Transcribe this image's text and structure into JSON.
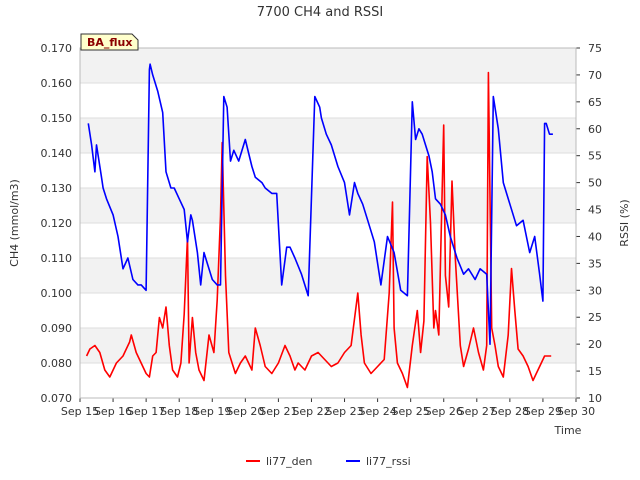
{
  "chart_data": {
    "type": "line",
    "title": "7700 CH4 and RSSI",
    "badge": "BA_flux",
    "xlabel": "Time",
    "ylabel_left": "CH4 (mmol/m3)",
    "ylabel_right": "RSSI (%)",
    "x_ticks": [
      "Sep 15",
      "Sep 16",
      "Sep 17",
      "Sep 18",
      "Sep 19",
      "Sep 20",
      "Sep 21",
      "Sep 22",
      "Sep 23",
      "Sep 24",
      "Sep 25",
      "Sep 26",
      "Sep 27",
      "Sep 28",
      "Sep 29",
      "Sep 30"
    ],
    "xlim": [
      15,
      30
    ],
    "ylim_left": [
      0.07,
      0.17
    ],
    "y_ticks_left": [
      "0.070",
      "0.080",
      "0.090",
      "0.100",
      "0.110",
      "0.120",
      "0.130",
      "0.140",
      "0.150",
      "0.160",
      "0.170"
    ],
    "ylim_right": [
      10,
      75
    ],
    "y_ticks_right": [
      "10",
      "15",
      "20",
      "25",
      "30",
      "35",
      "40",
      "45",
      "50",
      "55",
      "60",
      "65",
      "70",
      "75"
    ],
    "grid": true,
    "legend_position": "bottom-center",
    "series": [
      {
        "name": "li77_den",
        "axis": "left",
        "color": "#ff0000",
        "x": [
          15.2,
          15.3,
          15.45,
          15.6,
          15.75,
          15.9,
          16.1,
          16.3,
          16.5,
          16.55,
          16.7,
          16.9,
          17.0,
          17.1,
          17.2,
          17.3,
          17.4,
          17.5,
          17.6,
          17.7,
          17.8,
          17.95,
          18.05,
          18.15,
          18.25,
          18.3,
          18.4,
          18.5,
          18.6,
          18.75,
          18.9,
          19.05,
          19.15,
          19.25,
          19.3,
          19.4,
          19.5,
          19.6,
          19.7,
          19.85,
          20.0,
          20.2,
          20.3,
          20.45,
          20.6,
          20.8,
          21.0,
          21.2,
          21.35,
          21.5,
          21.6,
          21.8,
          22.0,
          22.2,
          22.4,
          22.6,
          22.8,
          23.0,
          23.2,
          23.4,
          23.5,
          23.6,
          23.8,
          24.0,
          24.2,
          24.35,
          24.45,
          24.5,
          24.6,
          24.75,
          24.9,
          25.05,
          25.2,
          25.3,
          25.4,
          25.5,
          25.6,
          25.7,
          25.75,
          25.85,
          26.0,
          26.05,
          26.15,
          26.25,
          26.35,
          26.5,
          26.6,
          26.75,
          26.9,
          27.05,
          27.2,
          27.3,
          27.35,
          27.45,
          27.55,
          27.65,
          27.8,
          27.95,
          28.05,
          28.15,
          28.25,
          28.4,
          28.55,
          28.7,
          28.8,
          28.95,
          29.05,
          29.15,
          29.25
        ],
        "values": [
          0.082,
          0.084,
          0.085,
          0.083,
          0.078,
          0.076,
          0.08,
          0.082,
          0.086,
          0.088,
          0.083,
          0.079,
          0.077,
          0.076,
          0.082,
          0.083,
          0.093,
          0.09,
          0.096,
          0.085,
          0.078,
          0.076,
          0.08,
          0.094,
          0.116,
          0.08,
          0.093,
          0.083,
          0.078,
          0.075,
          0.088,
          0.083,
          0.098,
          0.122,
          0.143,
          0.105,
          0.083,
          0.08,
          0.077,
          0.08,
          0.082,
          0.078,
          0.09,
          0.085,
          0.079,
          0.077,
          0.08,
          0.085,
          0.082,
          0.078,
          0.08,
          0.078,
          0.082,
          0.083,
          0.081,
          0.079,
          0.08,
          0.083,
          0.085,
          0.1,
          0.088,
          0.08,
          0.077,
          0.079,
          0.081,
          0.1,
          0.126,
          0.09,
          0.08,
          0.077,
          0.073,
          0.085,
          0.095,
          0.083,
          0.092,
          0.139,
          0.12,
          0.09,
          0.095,
          0.088,
          0.148,
          0.105,
          0.096,
          0.132,
          0.11,
          0.085,
          0.079,
          0.084,
          0.09,
          0.083,
          0.078,
          0.085,
          0.163,
          0.09,
          0.085,
          0.079,
          0.076,
          0.088,
          0.107,
          0.095,
          0.084,
          0.082,
          0.079,
          0.075,
          0.077,
          0.08,
          0.082,
          0.082,
          0.082
        ]
      },
      {
        "name": "li77_rssi",
        "axis": "right",
        "color": "#0000ff",
        "x": [
          15.25,
          15.35,
          15.45,
          15.5,
          15.65,
          15.7,
          15.8,
          16.0,
          16.15,
          16.3,
          16.45,
          16.6,
          16.75,
          16.85,
          17.0,
          17.1,
          17.12,
          17.2,
          17.35,
          17.5,
          17.6,
          17.75,
          17.85,
          18.0,
          18.15,
          18.25,
          18.35,
          18.4,
          18.55,
          18.65,
          18.75,
          18.85,
          19.0,
          19.15,
          19.25,
          19.35,
          19.45,
          19.55,
          19.65,
          19.8,
          20.0,
          20.2,
          20.3,
          20.5,
          20.6,
          20.8,
          20.95,
          21.1,
          21.25,
          21.35,
          21.5,
          21.7,
          21.9,
          22.1,
          22.25,
          22.3,
          22.45,
          22.6,
          22.8,
          23.0,
          23.15,
          23.3,
          23.4,
          23.55,
          23.7,
          23.9,
          24.1,
          24.3,
          24.5,
          24.7,
          24.9,
          25.05,
          25.15,
          25.25,
          25.35,
          25.45,
          25.55,
          25.65,
          25.75,
          25.9,
          26.05,
          26.2,
          26.4,
          26.6,
          26.75,
          26.95,
          27.1,
          27.3,
          27.4,
          27.5,
          27.65,
          27.8,
          28.0,
          28.2,
          28.4,
          28.6,
          28.75,
          28.9,
          29.0,
          29.05,
          29.1,
          29.2,
          29.3
        ],
        "values": [
          61,
          57,
          52,
          57,
          51,
          49,
          47,
          44,
          40,
          34,
          36,
          32,
          31,
          31,
          30,
          71,
          72,
          70,
          67,
          63,
          52,
          49,
          49,
          47,
          45,
          39,
          44,
          43,
          37,
          31,
          37,
          35,
          32,
          31,
          31,
          66,
          64,
          54,
          56,
          54,
          58,
          53,
          51,
          50,
          49,
          48,
          48,
          31,
          38,
          38,
          36,
          33,
          29,
          66,
          64,
          62,
          59,
          57,
          53,
          50,
          44,
          50,
          48,
          46,
          43,
          39,
          31,
          40,
          37,
          30,
          29,
          65,
          58,
          60,
          59,
          57,
          55,
          52,
          47,
          46,
          44,
          40,
          36,
          33,
          34,
          32,
          34,
          33,
          20,
          66,
          60,
          50,
          46,
          42,
          43,
          37,
          40,
          33,
          28,
          61,
          61,
          59,
          59
        ]
      }
    ]
  }
}
